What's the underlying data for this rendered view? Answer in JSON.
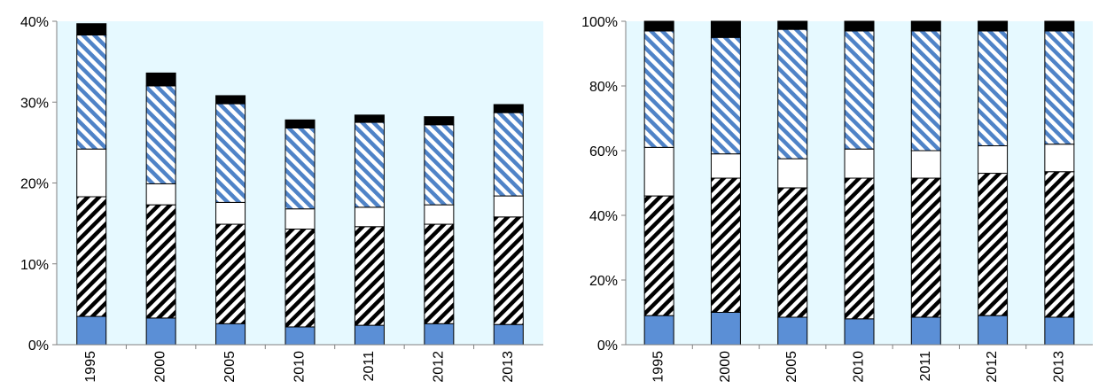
{
  "chart_data": [
    {
      "type": "bar",
      "stacked": true,
      "categories": [
        "1995",
        "2000",
        "2005",
        "2010",
        "2011",
        "2012",
        "2013"
      ],
      "ylim": [
        0,
        40
      ],
      "yticks": [
        0,
        10,
        20,
        30,
        40
      ],
      "ytick_labels": [
        "0%",
        "10%",
        "20%",
        "30%",
        "40%"
      ],
      "grid": false,
      "series": [
        {
          "style": "solid-blue",
          "values": [
            3.5,
            3.3,
            2.6,
            2.2,
            2.4,
            2.6,
            2.5
          ]
        },
        {
          "style": "black-hatch",
          "values": [
            14.8,
            14.0,
            12.3,
            12.1,
            12.2,
            12.3,
            13.3
          ]
        },
        {
          "style": "white",
          "values": [
            5.9,
            2.6,
            2.7,
            2.5,
            2.4,
            2.4,
            2.6
          ]
        },
        {
          "style": "blue-hatch",
          "values": [
            14.1,
            12.1,
            12.2,
            10.0,
            10.5,
            9.9,
            10.3
          ]
        },
        {
          "style": "black",
          "values": [
            1.4,
            1.6,
            1.0,
            1.0,
            0.9,
            1.0,
            1.0
          ]
        }
      ]
    },
    {
      "type": "bar",
      "stacked": true,
      "categories": [
        "1995",
        "2000",
        "2005",
        "2010",
        "2011",
        "2012",
        "2013"
      ],
      "ylim": [
        0,
        100
      ],
      "yticks": [
        0,
        20,
        40,
        60,
        80,
        100
      ],
      "ytick_labels": [
        "0%",
        "20%",
        "40%",
        "60%",
        "80%",
        "100%"
      ],
      "grid": false,
      "series": [
        {
          "style": "solid-blue",
          "values": [
            9,
            10,
            8.5,
            8,
            8.5,
            9,
            8.5
          ]
        },
        {
          "style": "black-hatch",
          "values": [
            37,
            41.5,
            40,
            43.5,
            43,
            44,
            45
          ]
        },
        {
          "style": "white",
          "values": [
            15,
            7.5,
            9,
            9,
            8.5,
            8.5,
            8.5
          ]
        },
        {
          "style": "blue-hatch",
          "values": [
            36,
            36,
            40,
            36.5,
            37,
            35.5,
            35
          ]
        },
        {
          "style": "black",
          "values": [
            3,
            5,
            2.5,
            3,
            3,
            3,
            3
          ]
        }
      ]
    }
  ],
  "colors": {
    "plot_background": "#e6f9ff",
    "solid_blue": "#5b8fd6",
    "hatch_blue": "#4f83c7",
    "black": "#000000",
    "white": "#ffffff",
    "axis": "#808080"
  }
}
